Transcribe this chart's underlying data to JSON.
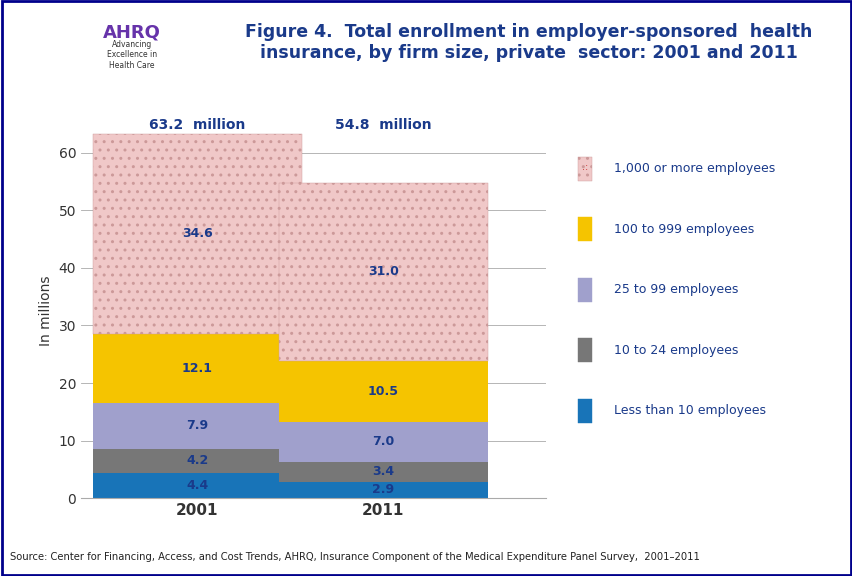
{
  "title_line1": "Figure 4.  Total enrollment in employer-sponsored  health",
  "title_line2": "insurance, by firm size, private  sector: 2001 and 2011",
  "ylabel": "In millions",
  "years": [
    "2001",
    "2011"
  ],
  "totals_labels": [
    "63.2  million",
    "54.8  million"
  ],
  "categories": [
    "Less than 10 employees",
    "10 to 24 employees",
    "25 to 99 employees",
    "100 to 999 employees",
    "1,000 or more employees"
  ],
  "values_2001": [
    4.4,
    4.2,
    7.9,
    12.1,
    34.6
  ],
  "values_2011": [
    2.9,
    3.4,
    7.0,
    10.5,
    31.0
  ],
  "colors": [
    "#1874b8",
    "#777777",
    "#a0a0cc",
    "#f5c400",
    "#f0c8c8"
  ],
  "hatch_top": "..",
  "bar_width": 0.45,
  "ylim": [
    0,
    65
  ],
  "yticks": [
    0,
    10,
    20,
    30,
    40,
    50,
    60
  ],
  "outer_bg": "#ffffff",
  "plot_bg": "#ffffff",
  "body_bg": "#f0f0f0",
  "title_color": "#1a3a8a",
  "label_color": "#1a3a8a",
  "axis_label_color": "#333333",
  "grid_color": "#aaaaaa",
  "source_text": "Source: Center for Financing, Access, and Cost Trends, AHRQ, Insurance Component of the Medical Expenditure Panel Survey,  2001–2011",
  "header_line_color": "#00008b",
  "footer_line_color": "#00008b",
  "bar_positions": [
    0.25,
    0.65
  ],
  "xlim": [
    0,
    1.0
  ],
  "bar_label_fontsize": 9,
  "total_label_fontsize": 10,
  "legend_text_color": "#1a3a8a",
  "legend_dot_color": "#cc3333"
}
